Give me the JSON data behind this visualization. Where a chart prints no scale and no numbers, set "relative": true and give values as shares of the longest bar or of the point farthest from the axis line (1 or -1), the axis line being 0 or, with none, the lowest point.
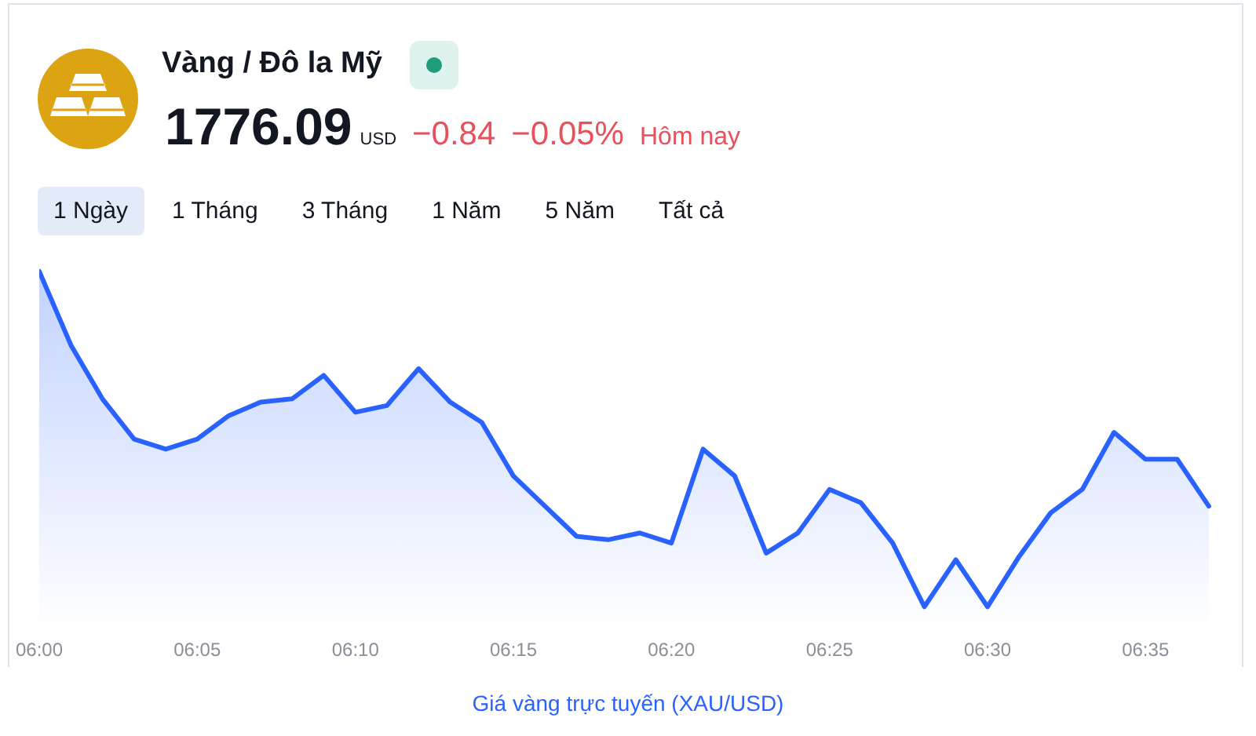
{
  "chart_data": {
    "type": "area",
    "title": "Vàng / Đô la Mỹ",
    "annotations": [
      "1776.09",
      "USD",
      "−0.84",
      "−0.05%",
      "Hôm nay",
      "1 Ngày",
      "1 Tháng",
      "3 Tháng",
      "1 Năm",
      "5 Năm",
      "Tất cả",
      "Giá vàng trực tuyến (XAU/USD)"
    ],
    "x": [
      6,
      6.0167,
      6.0333,
      6.05,
      6.0667,
      6.0833,
      6.1,
      6.1167,
      6.1333,
      6.15,
      6.1667,
      6.1833,
      6.2,
      6.2167,
      6.2333,
      6.25,
      6.2667,
      6.2833,
      6.3,
      6.3167,
      6.3333,
      6.35,
      6.3667,
      6.3833,
      6.4,
      6.4167,
      6.4333,
      6.45,
      6.4667,
      6.4833,
      6.5,
      6.5167,
      6.5333,
      6.55,
      6.5667,
      6.5833,
      6.6,
      6.6167
    ],
    "values": [
      1,
      0.78,
      0.62,
      0.5,
      0.47,
      0.5,
      0.57,
      0.61,
      0.62,
      0.69,
      0.58,
      0.6,
      0.71,
      0.61,
      0.55,
      0.39,
      0.3,
      0.21,
      0.2,
      0.22,
      0.19,
      0.47,
      0.39,
      0.16,
      0.22,
      0.35,
      0.31,
      0.19,
      0,
      0.14,
      0,
      0.15,
      0.28,
      0.35,
      0.52,
      0.44,
      0.44,
      0.3
    ],
    "color": "#2962ff",
    "relative": true,
    "marker": "none",
    "xlim": [
      6,
      6.6333
    ],
    "xticks": [
      {
        "value": 6,
        "label": "06:00"
      },
      {
        "value": 6.0833,
        "label": "06:05"
      },
      {
        "value": 6.1667,
        "label": "06:10"
      },
      {
        "value": 6.25,
        "label": "06:15"
      },
      {
        "value": 6.3333,
        "label": "06:20"
      },
      {
        "value": 6.4167,
        "label": "06:25"
      },
      {
        "value": 6.5,
        "label": "06:30"
      },
      {
        "value": 6.5833,
        "label": "06:35"
      }
    ]
  }
}
